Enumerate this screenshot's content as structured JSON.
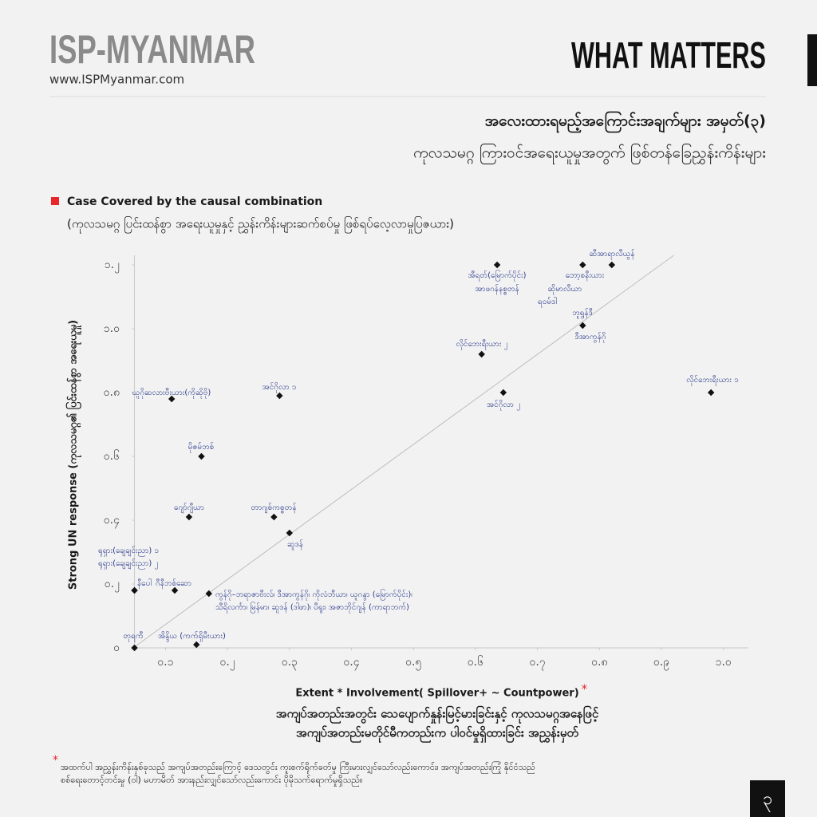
{
  "header": {
    "brand": "ISP-MYANMAR",
    "url": "www.ISPMyanmar.com",
    "tagline": "WHAT MATTERS"
  },
  "titles": [
    "အလေးထားရမည့်အကြောင်းအချက်များ အမှတ်(၃)",
    "ကုလသမဂ္ဂ ကြားဝင်အရေးယူမှုအတွက် ဖြစ်တန်ခြေညွှန်းကိန်းများ"
  ],
  "chart_data": {
    "type": "scatter",
    "legend": {
      "name": "Case Covered by the causal combination",
      "note": "(ကုလသမဂ္ဂ ပြင်းထန်စွာ အရေးယူမှုနှင့် ညွှန်းကိန်းများဆက်စပ်မှု ဖြစ်ရပ်လေ့လာမှုပြဇယား)",
      "color": "#e8262c"
    },
    "marker_color": "#111111",
    "x_label": "Extent * Involvement( Spillover+ ~ Countpower)",
    "x_label_mark": "*",
    "x_label_sub": [
      "အကျပ်အတည်းအတွင်း သေပျောက်နှုန်းမြင့်မားခြင်းနှင့် ကုလသမဂ္ဂအနေဖြင့်",
      "အကျပ်အတည်းမတိုင်မီကတည်းက ပါဝင်မှုရှိထားခြင်း အညွှန်းမှတ်"
    ],
    "y_label": "Strong UN response (ကုလသမဂ္ဂ၏ ပြင်းထန်စွာ အရေးယူမှု)",
    "x": [
      0.05,
      0.15,
      0.05,
      0.05,
      0.115,
      0.17,
      0.138,
      0.275,
      0.3,
      0.158,
      0.11,
      0.284,
      0.61,
      0.645,
      0.98,
      0.773,
      0.635,
      0.773,
      0.82
    ],
    "values": [
      0,
      0.01,
      0.18,
      0.18,
      0.18,
      0.17,
      0.41,
      0.41,
      0.36,
      0.6,
      0.78,
      0.79,
      0.92,
      0.8,
      0.8,
      1.01,
      1.2,
      1.2,
      1.2
    ],
    "point_labels": [
      [
        "တုရကီ"
      ],
      [
        "အိန္ဒိယ (ကက်ရှိမီးယား)"
      ],
      [
        "ရုရှား(ချေချင်းညာ) ၁",
        "ရုရှား(ချေချင်းညာ) ၂"
      ],
      [
        "နီပေါ"
      ],
      [
        "ဂီနီဘစ်ဆော"
      ],
      [
        "ကွန်ဂို–ဘရာဇာဗီးလ်၊ ဒီအာကွန်ဂို၊ ကိုလံဘီယာ၊ ယူဂန္ဒာ (မြောက်ပိုင်း)၊",
        "သီရိလင်္ကာ၊ မြန်မာ၊ ဆူဒန် (ဒါဖာ)၊ ပီရူး၊ အဇာဘိုင်ဂျန် (ကာရာဘက်)"
      ],
      [
        "ဂျော်ဂျီယာ"
      ],
      [
        "တာဂျစ်ကစ္စတန်"
      ],
      [
        "ဆူဒန်"
      ],
      [
        "မိုဇမ်ဘစ်"
      ],
      [
        "ယူဂိုဆလားဗီးယား(ကိုဆိုဗို)"
      ],
      [
        "အင်ဂိုလာ ၁"
      ],
      [
        "လိုင်ဘေးရီးယား ၂"
      ],
      [
        "အင်ဂိုလာ ၂"
      ],
      [
        "လိုင်ဘေးရီးယား ၁"
      ],
      [
        "ဘူရွန်ဒီ",
        "ဒီအာကွန်ဂို"
      ],
      [
        "အီရတ်(မြောက်ပိုင်း)",
        "အာဖဂန်နစ္စတန်"
      ],
      [
        "ဘော့စနီးယား",
        "ဆိုမာလီယာ",
        "ရဝမ်ဒါ"
      ],
      [
        "ဆီအာရာလီယွန်"
      ]
    ],
    "fit_line": {
      "x": [
        0.048,
        0.92
      ],
      "y": [
        0,
        1.23
      ]
    },
    "xlim": [
      0.05,
      1.04
    ],
    "ylim": [
      0,
      1.23
    ],
    "xticks": [
      {
        "value": 0.1,
        "label": "၀.၁"
      },
      {
        "value": 0.2,
        "label": "၀.၂"
      },
      {
        "value": 0.3,
        "label": "၀.၃"
      },
      {
        "value": 0.4,
        "label": "၀.၄"
      },
      {
        "value": 0.5,
        "label": "၀.၅"
      },
      {
        "value": 0.6,
        "label": "၀.၆"
      },
      {
        "value": 0.7,
        "label": "၀.၇"
      },
      {
        "value": 0.8,
        "label": "၀.၈"
      },
      {
        "value": 0.9,
        "label": "၀.၉"
      },
      {
        "value": 1.0,
        "label": "၁.၀"
      }
    ],
    "yticks": [
      {
        "value": 0,
        "label": "၀"
      },
      {
        "value": 0.2,
        "label": "၀.၂"
      },
      {
        "value": 0.4,
        "label": "၀.၄"
      },
      {
        "value": 0.6,
        "label": "၀.၆"
      },
      {
        "value": 0.8,
        "label": "၀.၈"
      },
      {
        "value": 1.0,
        "label": "၁.၀"
      },
      {
        "value": 1.2,
        "label": "၁.၂"
      }
    ]
  },
  "footnote": {
    "mark": "*",
    "lines": [
      "အထက်ပါ အညွှန်းကိန်းနှစ်ခုသည် အကျပ်အတည်းကြောင့် ဒေသတွင်း ကူးစက်ရိုက်ခတ်မှု ကြီးမားလျှင်သော်လည်းကောင်း၊ အကျပ်အတည်းကြုံ နိုင်ငံသည်",
      "စစ်ရေးတောင့်တင်းမှု (ဝါ) မဟာမိတ် အားနည်းလျှင်သော်လည်းကောင်း ပိုမိုသက်ရောက်မှုရှိသည်။"
    ]
  },
  "page_number": "၃"
}
